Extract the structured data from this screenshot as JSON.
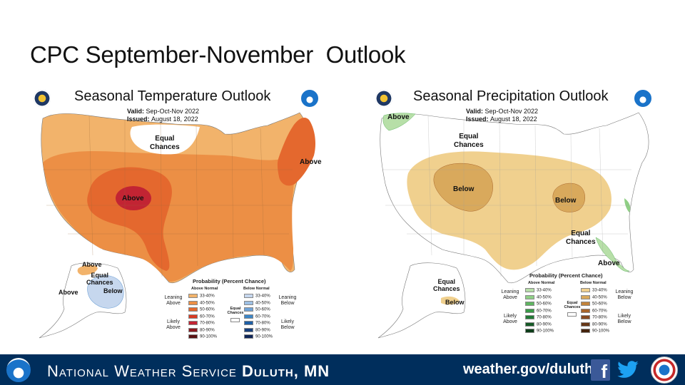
{
  "slide": {
    "title": "CPC September-November  Outlook"
  },
  "temperature_map": {
    "title": "Seasonal Temperature Outlook",
    "valid_label": "Valid:",
    "valid_value": "Sep-Oct-Nov 2022",
    "issued_label": "Issued:",
    "issued_value": "August 18, 2022",
    "region_labels": {
      "equal_chances_1": "Equal",
      "equal_chances_2": "Chances",
      "above_northeast": "Above",
      "above_central": "Above",
      "alaska_above_north": "Above",
      "alaska_equal_1": "Equal",
      "alaska_equal_2": "Chances",
      "alaska_below": "Below",
      "alaska_above_west": "Above"
    },
    "legend": {
      "title": "Probability (Percent Chance)",
      "above_header": "Above Normal",
      "below_header": "Below Normal",
      "left_top_1": "Leaning",
      "left_top_2": "Above",
      "left_bottom_1": "Likely",
      "left_bottom_2": "Above",
      "right_top_1": "Leaning",
      "right_top_2": "Below",
      "right_bottom_1": "Likely",
      "right_bottom_2": "Below",
      "equal_1": "Equal",
      "equal_2": "Chances",
      "ranges": [
        "33-40%",
        "40-50%",
        "50-60%",
        "60-70%",
        "70-80%",
        "80-90%",
        "90-100%"
      ],
      "above_colors": [
        "#f2b36b",
        "#ec8f45",
        "#e4682e",
        "#d93b24",
        "#c22433",
        "#8b1a1f",
        "#5a1315"
      ],
      "below_colors": [
        "#c6d7ee",
        "#9dbfe3",
        "#6fa2d6",
        "#3d86c6",
        "#1e5fa5",
        "#173f7c",
        "#0f2658"
      ]
    }
  },
  "precipitation_map": {
    "title": "Seasonal Precipitation Outlook",
    "valid_label": "Valid:",
    "valid_value": "Sep-Oct-Nov 2022",
    "issued_label": "Issued:",
    "issued_value": "August 18, 2022",
    "region_labels": {
      "above_northwest": "Above",
      "equal_chances_1": "Equal",
      "equal_chances_2": "Chances",
      "below_west": "Below",
      "below_midwest": "Below",
      "equal_south_1": "Equal",
      "equal_south_2": "Chances",
      "above_florida": "Above",
      "alaska_equal_1": "Equal",
      "alaska_equal_2": "Chances",
      "alaska_below": "Below"
    },
    "legend": {
      "title": "Probability (Percent Chance)",
      "above_header": "Above Normal",
      "below_header": "Below Normal",
      "left_top_1": "Leaning",
      "left_top_2": "Above",
      "left_bottom_1": "Likely",
      "left_bottom_2": "Above",
      "right_top_1": "Leaning",
      "right_top_2": "Below",
      "right_bottom_1": "Likely",
      "right_bottom_2": "Below",
      "equal_1": "Equal",
      "equal_2": "Chances",
      "ranges": [
        "33-40%",
        "40-50%",
        "50-60%",
        "60-70%",
        "70-80%",
        "80-90%",
        "90-100%"
      ],
      "above_colors": [
        "#b7dfa8",
        "#8fcf85",
        "#5fb461",
        "#3a9a48",
        "#237a36",
        "#165a27",
        "#0d3d19"
      ],
      "below_colors": [
        "#f0d08e",
        "#d9a95c",
        "#c2833b",
        "#a7642a",
        "#874a20",
        "#653616",
        "#45230d"
      ]
    }
  },
  "footer": {
    "name_prefix": "National Weather Service ",
    "name_office": "Duluth, MN",
    "url": "weather.gov/duluth",
    "facebook_icon": "facebook-icon",
    "twitter_icon": "twitter-icon",
    "background": "#002e5c"
  }
}
